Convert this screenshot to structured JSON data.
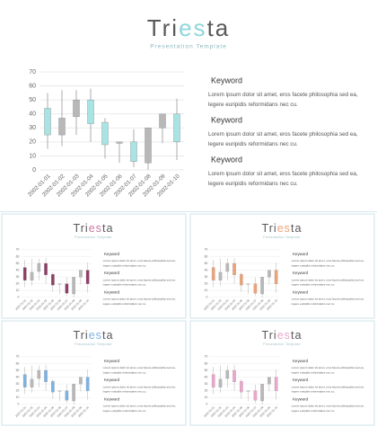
{
  "title": {
    "parts": [
      "Tri",
      "es",
      "ta"
    ]
  },
  "subtitle": "Presentation Template",
  "chart_data": {
    "type": "candlestick",
    "categories": [
      "2002-01-01",
      "2002-01-02",
      "2002-01-03",
      "2002-01-04",
      "2002-01-05",
      "2002-01-06",
      "2002-01-07",
      "2002-01-08",
      "2002-01-09",
      "2002-01-10"
    ],
    "open": [
      25,
      37,
      50,
      33,
      18,
      20,
      6,
      30,
      40,
      20
    ],
    "close": [
      44,
      25,
      38,
      50,
      34,
      19,
      20,
      5,
      30,
      40
    ],
    "high": [
      55,
      57,
      57,
      58,
      37,
      20,
      29,
      30,
      40,
      51
    ],
    "low": [
      15,
      17,
      25,
      20,
      8,
      5,
      2,
      0,
      19,
      7
    ],
    "ylim": [
      0,
      70
    ],
    "yticks": [
      0,
      10,
      20,
      30,
      40,
      50,
      60,
      70
    ],
    "grid": true,
    "up_color": "#a8e4e4",
    "down_color": "#b8b8b8",
    "accent": "#8fd6dc"
  },
  "notes": [
    {
      "heading": "Keyword",
      "text": "Lorem ipsum dolor sit amet, eros facete philosophia sed ea, legere euripidis reformidans nec cu."
    },
    {
      "heading": "Keyword",
      "text": "Lorem ipsum dolor sit amet, eros facete philosophia sed ea, legere euripidis reformidans nec cu."
    },
    {
      "heading": "Keyword",
      "text": "Lorem ipsum dolor sit amet, eros facete philosophia sed ea, legere euripidis reformidans nec cu."
    }
  ],
  "thumbnails": [
    {
      "up_color": "#8e3e66",
      "down_color": "#b8b8b8",
      "accent": "#c87a9c"
    },
    {
      "up_color": "#eba47a",
      "down_color": "#b8b8b8",
      "accent": "#eba47a"
    },
    {
      "up_color": "#7cb2e2",
      "down_color": "#b8b8b8",
      "accent": "#7cb2e2"
    },
    {
      "up_color": "#eaa6cc",
      "down_color": "#b8b8b8",
      "accent": "#eaa6cc"
    }
  ]
}
